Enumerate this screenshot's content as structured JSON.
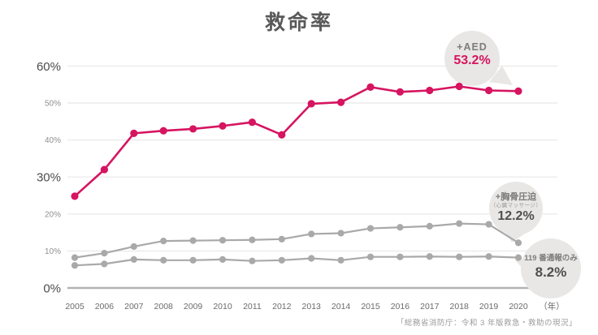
{
  "title": "救命率",
  "source": "「総務省消防庁：令和 3 年版救急・救助の現況」",
  "chart_data": {
    "type": "line",
    "title": "救命率",
    "x": [
      2005,
      2006,
      2007,
      2008,
      2009,
      2010,
      2011,
      2012,
      2013,
      2014,
      2015,
      2016,
      2017,
      2018,
      2019,
      2020
    ],
    "x_unit_label": "（年）",
    "ylim": [
      0,
      60
    ],
    "y_ticks": [
      0,
      10,
      20,
      30,
      40,
      50,
      60
    ],
    "y_tick_labels": [
      "0%",
      "10%",
      "20%",
      "30%",
      "40%",
      "50%",
      "60%"
    ],
    "y_ticks_emphasized": [
      0,
      30,
      60
    ],
    "grid": true,
    "legend_position": "none",
    "series": [
      {
        "name": "+AED",
        "color": "#d61460",
        "values": [
          24.8,
          32.0,
          41.8,
          42.5,
          43.0,
          43.8,
          44.8,
          41.4,
          49.8,
          50.2,
          54.3,
          53.0,
          53.4,
          54.5,
          53.4,
          53.2
        ]
      },
      {
        "name": "+胸骨圧迫（心臓マッサージ）",
        "color": "#a9a9a9",
        "values": [
          8.2,
          9.4,
          11.2,
          12.7,
          12.8,
          12.9,
          13.0,
          13.2,
          14.6,
          14.8,
          16.1,
          16.4,
          16.7,
          17.4,
          17.2,
          12.2
        ]
      },
      {
        "name": "119番通報のみ",
        "color": "#a9a9a9",
        "values": [
          6.1,
          6.5,
          7.7,
          7.5,
          7.5,
          7.7,
          7.3,
          7.5,
          8.0,
          7.5,
          8.4,
          8.4,
          8.5,
          8.4,
          8.5,
          8.2
        ]
      }
    ]
  },
  "annotations": {
    "aed": {
      "line1": "+AED",
      "value": "53.2%"
    },
    "chest": {
      "line1": "+胸骨圧迫",
      "line2": "（心臓マッサージ）",
      "value": "12.2%"
    },
    "call119": {
      "line1": "119 番通報のみ",
      "value": "8.2%"
    }
  },
  "colors": {
    "accent_red": "#d61460",
    "gray_line": "#a9a9a9",
    "bubble_fill": "#e8e7e5",
    "grid": "#ebebeb",
    "axis": "#b3b3b3"
  }
}
